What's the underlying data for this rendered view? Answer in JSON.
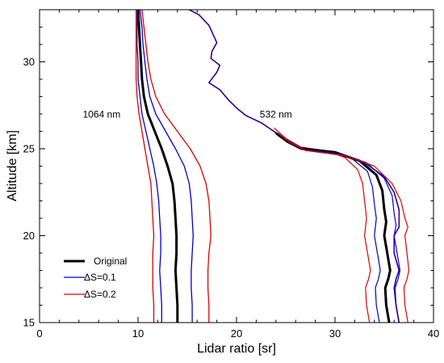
{
  "chart_data": {
    "type": "line",
    "xlabel": "Lidar ratio [sr]",
    "ylabel": "Altitude [km]",
    "xlim": [
      0,
      40
    ],
    "ylim": [
      15,
      33
    ],
    "xticks": [
      "0",
      "10",
      "20",
      "30",
      "40"
    ],
    "yticks": [
      "15",
      "20",
      "25",
      "30"
    ],
    "grid": false,
    "legend_position": "bottom-left",
    "annotations": [
      {
        "text": "1064 nm",
        "x": 6.3,
        "y": 26.8
      },
      {
        "text": "532 nm",
        "x": 24.0,
        "y": 26.8
      }
    ],
    "legend": [
      {
        "label": "Original",
        "color": "#000000"
      },
      {
        "label": "ΔS=0.1",
        "color": "#0000cc"
      },
      {
        "label": "ΔS=0.2",
        "color": "#e00000"
      }
    ],
    "series": [
      {
        "name": "Original",
        "color": "#000000",
        "width": 3,
        "points": [
          [
            10.0,
            33.0
          ],
          [
            10.1,
            32.0
          ],
          [
            10.2,
            31.0
          ],
          [
            10.3,
            30.0
          ],
          [
            10.4,
            29.0
          ],
          [
            10.6,
            28.0
          ],
          [
            11.0,
            27.0
          ],
          [
            11.7,
            26.0
          ],
          [
            12.4,
            25.0
          ],
          [
            13.0,
            24.0
          ],
          [
            13.5,
            23.0
          ],
          [
            13.7,
            22.0
          ],
          [
            13.8,
            21.0
          ],
          [
            13.9,
            20.0
          ],
          [
            13.9,
            19.0
          ],
          [
            13.8,
            18.0
          ],
          [
            13.9,
            17.0
          ],
          [
            14.0,
            16.0
          ],
          [
            14.0,
            15.0
          ]
        ]
      },
      {
        "name": "",
        "color": "#0000cc",
        "width": 1.3,
        "points": [
          [
            9.9,
            33.0
          ],
          [
            9.9,
            32.0
          ],
          [
            9.9,
            31.0
          ],
          [
            10.0,
            30.0
          ],
          [
            10.0,
            29.0
          ],
          [
            10.2,
            28.0
          ],
          [
            10.4,
            27.0
          ],
          [
            10.8,
            26.0
          ],
          [
            11.2,
            25.0
          ],
          [
            11.6,
            24.0
          ],
          [
            11.9,
            23.0
          ],
          [
            12.1,
            22.0
          ],
          [
            12.2,
            21.0
          ],
          [
            12.3,
            20.0
          ],
          [
            12.3,
            19.0
          ],
          [
            12.2,
            18.0
          ],
          [
            12.3,
            17.0
          ],
          [
            12.4,
            16.0
          ],
          [
            12.4,
            15.0
          ]
        ]
      },
      {
        "name": "",
        "color": "#0000cc",
        "width": 1.3,
        "points": [
          [
            10.2,
            33.0
          ],
          [
            10.4,
            32.0
          ],
          [
            10.5,
            31.0
          ],
          [
            10.7,
            30.0
          ],
          [
            10.9,
            29.0
          ],
          [
            11.2,
            28.0
          ],
          [
            11.8,
            27.0
          ],
          [
            12.8,
            26.0
          ],
          [
            13.8,
            25.0
          ],
          [
            14.7,
            24.0
          ],
          [
            15.2,
            23.0
          ],
          [
            15.4,
            22.0
          ],
          [
            15.5,
            21.0
          ],
          [
            15.6,
            20.0
          ],
          [
            15.5,
            19.0
          ],
          [
            15.4,
            18.0
          ],
          [
            15.4,
            17.0
          ],
          [
            15.5,
            16.0
          ],
          [
            15.5,
            15.0
          ]
        ]
      },
      {
        "name": "",
        "color": "#e00000",
        "width": 1.3,
        "points": [
          [
            9.8,
            33.0
          ],
          [
            9.8,
            32.0
          ],
          [
            9.8,
            31.0
          ],
          [
            9.8,
            30.0
          ],
          [
            9.8,
            29.0
          ],
          [
            9.9,
            28.0
          ],
          [
            10.1,
            27.0
          ],
          [
            10.4,
            26.0
          ],
          [
            10.7,
            25.0
          ],
          [
            11.0,
            24.0
          ],
          [
            11.3,
            23.0
          ],
          [
            11.4,
            22.0
          ],
          [
            11.5,
            21.0
          ],
          [
            11.6,
            20.0
          ],
          [
            11.5,
            19.0
          ],
          [
            11.5,
            18.0
          ],
          [
            11.5,
            17.0
          ],
          [
            11.6,
            16.0
          ],
          [
            11.6,
            15.0
          ]
        ]
      },
      {
        "name": "",
        "color": "#e00000",
        "width": 1.3,
        "points": [
          [
            10.4,
            33.0
          ],
          [
            10.6,
            32.0
          ],
          [
            10.8,
            31.0
          ],
          [
            11.0,
            30.0
          ],
          [
            11.3,
            29.0
          ],
          [
            11.8,
            28.0
          ],
          [
            12.7,
            27.0
          ],
          [
            14.0,
            26.0
          ],
          [
            15.3,
            25.0
          ],
          [
            16.3,
            24.0
          ],
          [
            16.9,
            23.0
          ],
          [
            17.2,
            22.0
          ],
          [
            17.3,
            21.0
          ],
          [
            17.4,
            20.0
          ],
          [
            17.2,
            19.0
          ],
          [
            17.1,
            18.0
          ],
          [
            17.1,
            17.0
          ],
          [
            17.2,
            16.0
          ],
          [
            17.2,
            15.0
          ]
        ]
      },
      {
        "name": "",
        "color": "#e00000",
        "width": 1.6,
        "points": [
          [
            15.2,
            33.0
          ],
          [
            16.2,
            32.7
          ],
          [
            17.2,
            32.1
          ],
          [
            17.6,
            31.6
          ],
          [
            18.0,
            31.1
          ],
          [
            17.5,
            30.6
          ],
          [
            17.4,
            30.2
          ],
          [
            18.3,
            29.8
          ],
          [
            18.0,
            29.4
          ],
          [
            17.2,
            28.8
          ],
          [
            18.3,
            28.4
          ],
          [
            19.2,
            27.8
          ],
          [
            20.1,
            27.3
          ],
          [
            21.0,
            26.9
          ],
          [
            22.5,
            26.5
          ],
          [
            23.8,
            26.0
          ],
          [
            25.0,
            25.5
          ],
          [
            26.5,
            25.0
          ],
          [
            30.0,
            24.8
          ],
          [
            33.0,
            24.2
          ],
          [
            35.0,
            23.4
          ],
          [
            36.0,
            22.5
          ],
          [
            36.5,
            21.5
          ],
          [
            36.5,
            20.5
          ],
          [
            36.0,
            20.0
          ],
          [
            36.0,
            19.0
          ],
          [
            36.5,
            18.0
          ],
          [
            36.2,
            17.5
          ],
          [
            36.0,
            17.0
          ],
          [
            36.2,
            16.0
          ],
          [
            36.5,
            15.0
          ]
        ]
      },
      {
        "name": "",
        "color": "#0000cc",
        "width": 1.2,
        "points": [
          [
            15.2,
            33.0
          ],
          [
            16.2,
            32.7
          ],
          [
            17.2,
            32.1
          ],
          [
            17.6,
            31.6
          ],
          [
            18.0,
            31.1
          ],
          [
            17.5,
            30.6
          ],
          [
            17.4,
            30.2
          ],
          [
            18.3,
            29.8
          ],
          [
            18.0,
            29.4
          ],
          [
            17.2,
            28.8
          ],
          [
            18.3,
            28.4
          ],
          [
            19.2,
            27.8
          ],
          [
            20.1,
            27.3
          ],
          [
            21.0,
            26.9
          ],
          [
            22.5,
            26.5
          ],
          [
            23.8,
            26.0
          ],
          [
            25.0,
            25.5
          ],
          [
            26.5,
            25.0
          ],
          [
            30.0,
            24.8
          ],
          [
            33.0,
            24.2
          ],
          [
            35.0,
            23.4
          ],
          [
            36.0,
            22.5
          ],
          [
            36.5,
            21.5
          ],
          [
            36.5,
            20.5
          ],
          [
            36.0,
            20.0
          ],
          [
            36.0,
            19.0
          ],
          [
            36.5,
            18.0
          ],
          [
            36.2,
            17.5
          ],
          [
            36.0,
            17.0
          ],
          [
            36.2,
            16.0
          ],
          [
            36.5,
            15.0
          ]
        ]
      },
      {
        "name": "",
        "color": "#e00000",
        "width": 1.2,
        "points": [
          [
            23.8,
            26.2
          ],
          [
            25.0,
            25.6
          ],
          [
            26.5,
            25.1
          ],
          [
            29.0,
            24.9
          ],
          [
            31.0,
            24.5
          ],
          [
            32.3,
            23.8
          ],
          [
            32.8,
            23.0
          ],
          [
            33.0,
            22.0
          ],
          [
            33.2,
            21.0
          ],
          [
            33.0,
            20.0
          ],
          [
            33.3,
            19.0
          ],
          [
            33.6,
            18.0
          ],
          [
            33.4,
            17.5
          ],
          [
            33.1,
            17.0
          ],
          [
            33.2,
            16.0
          ],
          [
            33.5,
            15.0
          ]
        ]
      },
      {
        "name": "",
        "color": "#0000cc",
        "width": 1.2,
        "points": [
          [
            23.8,
            26.0
          ],
          [
            25.0,
            25.55
          ],
          [
            26.5,
            25.05
          ],
          [
            29.5,
            24.85
          ],
          [
            31.8,
            24.4
          ],
          [
            33.3,
            23.7
          ],
          [
            33.8,
            22.8
          ],
          [
            34.0,
            21.8
          ],
          [
            34.2,
            21.0
          ],
          [
            34.0,
            20.0
          ],
          [
            34.3,
            19.0
          ],
          [
            34.6,
            18.0
          ],
          [
            34.4,
            17.5
          ],
          [
            34.1,
            17.0
          ],
          [
            34.2,
            16.0
          ],
          [
            34.5,
            15.0
          ]
        ]
      },
      {
        "name": "",
        "color": "#000000",
        "width": 3,
        "points": [
          [
            24.0,
            25.9
          ],
          [
            25.2,
            25.4
          ],
          [
            26.6,
            25.0
          ],
          [
            30.0,
            24.8
          ],
          [
            32.5,
            24.3
          ],
          [
            34.2,
            23.5
          ],
          [
            34.8,
            22.6
          ],
          [
            35.0,
            21.5
          ],
          [
            35.2,
            20.8
          ],
          [
            35.0,
            20.0
          ],
          [
            35.3,
            19.0
          ],
          [
            35.6,
            18.0
          ],
          [
            35.4,
            17.5
          ],
          [
            35.1,
            17.0
          ],
          [
            35.2,
            16.0
          ],
          [
            35.5,
            15.0
          ]
        ]
      },
      {
        "name": "",
        "color": "#0000cc",
        "width": 1.2,
        "points": [
          [
            24.2,
            25.9
          ],
          [
            25.4,
            25.4
          ],
          [
            26.8,
            24.95
          ],
          [
            30.5,
            24.7
          ],
          [
            33.2,
            24.2
          ],
          [
            35.0,
            23.3
          ],
          [
            35.8,
            22.3
          ],
          [
            36.0,
            21.3
          ],
          [
            36.2,
            20.6
          ],
          [
            36.0,
            20.0
          ],
          [
            36.3,
            19.0
          ],
          [
            36.6,
            18.0
          ],
          [
            36.4,
            17.5
          ],
          [
            36.1,
            17.0
          ],
          [
            36.2,
            16.0
          ],
          [
            36.5,
            15.0
          ]
        ]
      },
      {
        "name": "",
        "color": "#e00000",
        "width": 1.2,
        "points": [
          [
            24.4,
            25.8
          ],
          [
            25.6,
            25.3
          ],
          [
            27.0,
            24.9
          ],
          [
            31.0,
            24.6
          ],
          [
            34.0,
            24.0
          ],
          [
            35.8,
            23.0
          ],
          [
            36.7,
            22.0
          ],
          [
            37.1,
            21.0
          ],
          [
            37.4,
            20.5
          ],
          [
            37.1,
            20.0
          ],
          [
            37.3,
            19.0
          ],
          [
            37.5,
            18.0
          ],
          [
            37.3,
            17.5
          ],
          [
            37.0,
            17.0
          ],
          [
            37.1,
            16.0
          ],
          [
            37.4,
            15.0
          ]
        ]
      }
    ]
  }
}
